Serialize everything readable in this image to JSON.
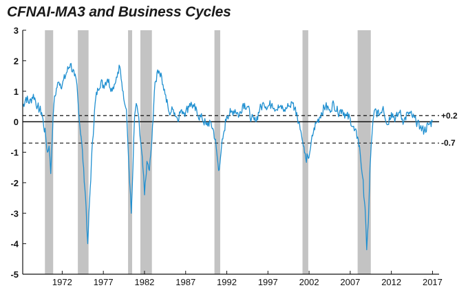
{
  "chart_data": {
    "type": "line",
    "title": "CFNAI-MA3 and Business Cycles",
    "xlim": [
      1967.2,
      2017.8
    ],
    "ylim": [
      -5,
      3
    ],
    "yticks": [
      3,
      2,
      1,
      0,
      -1,
      -2,
      -3,
      -4,
      -5
    ],
    "xticks": [
      1972,
      1977,
      1982,
      1987,
      1992,
      1997,
      2002,
      2007,
      2012,
      2017
    ],
    "reference_lines": [
      {
        "label": "+0.2",
        "value": 0.2,
        "style": "dashed"
      },
      {
        "label": "0",
        "value": 0,
        "style": "solid"
      },
      {
        "label": "-0.7",
        "value": -0.7,
        "style": "dashed"
      }
    ],
    "recessions": [
      [
        1969.9,
        1970.9
      ],
      [
        1973.9,
        1975.2
      ],
      [
        1980.0,
        1980.5
      ],
      [
        1981.5,
        1982.9
      ],
      [
        1990.5,
        1991.2
      ],
      [
        2001.2,
        2001.9
      ],
      [
        2007.9,
        2009.5
      ]
    ],
    "series": [
      {
        "color": "#1f8fd0",
        "x": [
          1967.2,
          1967.6,
          1968.0,
          1968.5,
          1969.0,
          1969.5,
          1970.0,
          1970.2,
          1970.4,
          1970.6,
          1970.8,
          1971.0,
          1971.3,
          1971.6,
          1972.0,
          1972.5,
          1973.0,
          1973.5,
          1973.8,
          1974.0,
          1974.3,
          1974.6,
          1974.9,
          1975.1,
          1975.4,
          1975.7,
          1976.0,
          1976.3,
          1976.7,
          1977.0,
          1977.5,
          1978.0,
          1978.5,
          1979.0,
          1979.4,
          1979.8,
          1980.0,
          1980.2,
          1980.4,
          1980.6,
          1980.8,
          1981.0,
          1981.2,
          1981.5,
          1981.8,
          1982.0,
          1982.3,
          1982.6,
          1982.9,
          1983.2,
          1983.6,
          1984.0,
          1984.5,
          1985.0,
          1985.5,
          1986.0,
          1986.5,
          1987.0,
          1987.5,
          1988.0,
          1988.5,
          1989.0,
          1989.5,
          1990.0,
          1990.4,
          1990.7,
          1991.0,
          1991.3,
          1991.6,
          1992.0,
          1992.5,
          1993.0,
          1993.5,
          1994.0,
          1994.5,
          1995.0,
          1995.5,
          1996.0,
          1996.5,
          1997.0,
          1997.5,
          1998.0,
          1998.5,
          1999.0,
          1999.5,
          2000.0,
          2000.5,
          2001.0,
          2001.3,
          2001.6,
          2001.9,
          2002.2,
          2002.6,
          2003.0,
          2003.5,
          2004.0,
          2004.5,
          2005.0,
          2005.5,
          2006.0,
          2006.5,
          2007.0,
          2007.5,
          2007.9,
          2008.2,
          2008.5,
          2008.8,
          2009.0,
          2009.2,
          2009.4,
          2009.7,
          2010.0,
          2010.5,
          2011.0,
          2011.5,
          2012.0,
          2012.5,
          2013.0,
          2013.5,
          2014.0,
          2014.5,
          2015.0,
          2015.5,
          2016.0,
          2016.5,
          2017.0
        ],
        "values": [
          0.5,
          0.8,
          0.6,
          0.9,
          0.5,
          0.3,
          -0.5,
          -1.0,
          -0.8,
          -1.7,
          -0.5,
          0.6,
          1.1,
          1.3,
          1.2,
          1.6,
          1.9,
          1.5,
          1.2,
          0.3,
          -0.5,
          -1.5,
          -2.8,
          -4.0,
          -2.2,
          -0.6,
          0.6,
          1.1,
          1.3,
          1.2,
          1.4,
          1.1,
          1.3,
          1.8,
          1.0,
          0.4,
          -0.8,
          -2.0,
          -3.0,
          -1.5,
          0.2,
          0.6,
          0.3,
          -0.6,
          -1.5,
          -2.4,
          -1.3,
          -1.6,
          -0.6,
          1.0,
          1.7,
          1.6,
          0.9,
          0.3,
          0.4,
          0.1,
          0.4,
          0.3,
          0.6,
          0.5,
          0.2,
          0.1,
          -0.1,
          0.0,
          -0.3,
          -0.8,
          -1.6,
          -1.0,
          -0.4,
          0.2,
          0.3,
          0.4,
          0.2,
          0.6,
          0.5,
          0.1,
          0.0,
          0.4,
          0.6,
          0.5,
          0.6,
          0.4,
          0.5,
          0.4,
          0.5,
          0.6,
          0.3,
          -0.3,
          -0.8,
          -1.2,
          -1.2,
          -0.8,
          -0.2,
          0.0,
          0.3,
          0.5,
          0.4,
          0.6,
          0.3,
          0.4,
          0.2,
          0.1,
          -0.3,
          -0.5,
          -1.0,
          -1.8,
          -2.8,
          -4.2,
          -3.3,
          -1.5,
          -0.2,
          0.4,
          0.2,
          0.5,
          -0.1,
          0.3,
          0.1,
          0.3,
          0.0,
          0.3,
          0.2,
          0.0,
          -0.2,
          -0.3,
          -0.1,
          0.0
        ]
      }
    ],
    "grid": false,
    "xlabel": "",
    "ylabel": ""
  }
}
